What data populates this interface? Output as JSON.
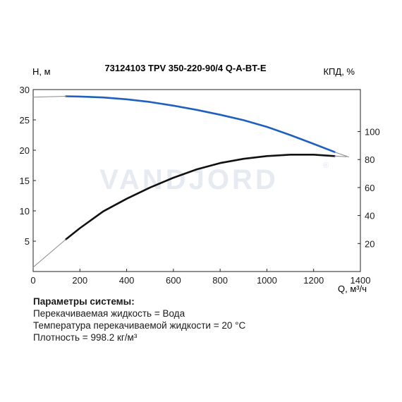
{
  "chart_data": {
    "type": "line",
    "title": "73124103 TPV 350-220-90/4 Q-A-BT-E",
    "xlabel": "Q, м³/ч",
    "ylabel_left": "H, м",
    "ylabel_right": "КПД, %",
    "xlim": [
      0,
      1400
    ],
    "ylim_left": [
      0,
      30
    ],
    "ylim_right": [
      0,
      130
    ],
    "xticks": [
      "0",
      "200",
      "400",
      "600",
      "800",
      "1000",
      "1200",
      "1400"
    ],
    "yticks_left": [
      "5",
      "10",
      "15",
      "20",
      "25",
      "30"
    ],
    "yticks_right": [
      "20",
      "40",
      "60",
      "80",
      "100"
    ],
    "grid": false,
    "watermark": "VANDJORD",
    "colors": {
      "head": "#1f5fbf",
      "efficiency": "#111111",
      "extension": "#8a8a8a",
      "watermark": "#e6ebf2"
    },
    "series": [
      {
        "name": "",
        "axis": "left",
        "x": [
          140,
          200,
          300,
          400,
          500,
          600,
          700,
          800,
          900,
          1000,
          1100,
          1200,
          1290
        ],
        "y": [
          28.9,
          28.85,
          28.7,
          28.4,
          27.95,
          27.35,
          26.65,
          25.85,
          24.95,
          23.85,
          22.5,
          21.05,
          19.7
        ]
      },
      {
        "name": "",
        "axis": "left",
        "x": [
          0,
          140
        ],
        "y": [
          28.75,
          28.9
        ]
      },
      {
        "name": "",
        "axis": "left",
        "x": [
          1290,
          1350
        ],
        "y": [
          19.7,
          18.9
        ]
      },
      {
        "name": "",
        "axis": "right",
        "x": [
          140,
          200,
          300,
          400,
          500,
          600,
          700,
          800,
          900,
          1000,
          1100,
          1200,
          1290
        ],
        "y": [
          23,
          31,
          43,
          52,
          60,
          67,
          73,
          77.5,
          80.5,
          82.5,
          83.5,
          83.5,
          82.5
        ]
      },
      {
        "name": "",
        "axis": "right",
        "x": [
          0,
          140
        ],
        "y": [
          3,
          23
        ]
      },
      {
        "name": "",
        "axis": "right",
        "x": [
          1290,
          1340
        ],
        "y": [
          82.5,
          82
        ]
      }
    ]
  },
  "params": {
    "heading": "Параметры системы:",
    "lines": [
      "Перекачиваемая жидкость = Вода",
      "Температура перекачиваемой жидкости = 20 °C",
      "Плотность = 998.2 кг/м³"
    ]
  }
}
